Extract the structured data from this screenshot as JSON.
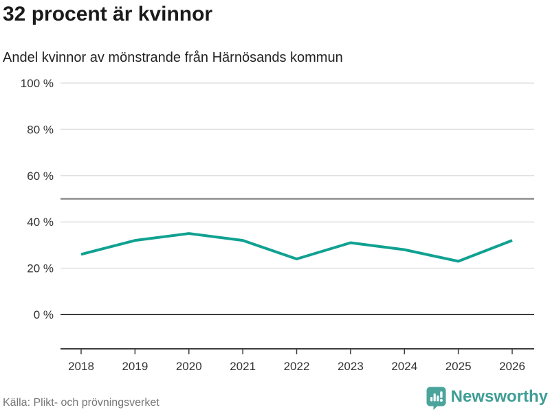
{
  "header": {
    "title": "32 procent är kvinnor",
    "subtitle": "Andel kvinnor av mönstrande från Härnösands kommun"
  },
  "footer": {
    "source": "Källa: Plikt- och prövningsverket",
    "brand": "Newsworthy"
  },
  "colors": {
    "line": "#10a191",
    "grid": "#e0e0e0",
    "reference": "#8c8c8c",
    "axis": "#3c3c3c",
    "tick_text": "#333333",
    "logo_icon": "#4aa49c",
    "brand_text": "#3f9d96"
  },
  "chart_data": {
    "type": "line",
    "title": "32 procent är kvinnor",
    "subtitle": "Andel kvinnor av mönstrande från Härnösands kommun",
    "categories": [
      2018,
      2019,
      2020,
      2021,
      2022,
      2023,
      2024,
      2025,
      2026
    ],
    "series": [
      {
        "name": "Andel kvinnor av mönstrande",
        "values": [
          26,
          32,
          35,
          32,
          24,
          31,
          28,
          23,
          32
        ]
      }
    ],
    "xlabel": "",
    "ylabel": "",
    "ylim": [
      0,
      100
    ],
    "y_ticks": [
      0,
      20,
      40,
      60,
      80,
      100
    ],
    "y_tick_suffix": " %",
    "reference_line": 50,
    "grid": true,
    "legend_position": "none",
    "source": "Källa: Plikt- och prövningsverket"
  }
}
